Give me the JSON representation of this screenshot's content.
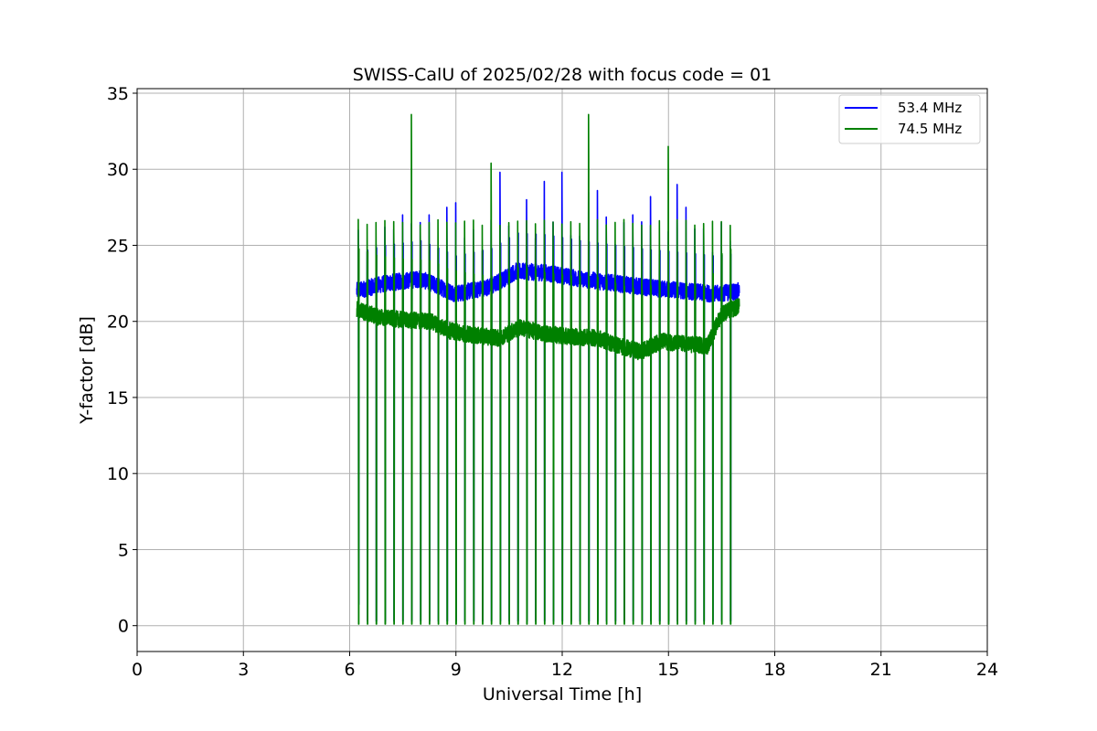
{
  "chart_data": {
    "type": "line",
    "title": "SWISS-CalU of 2025/02/28 with focus code = 01",
    "xlabel": "Universal Time [h]",
    "ylabel": "Y-factor [dB]",
    "xlim": [
      0,
      24
    ],
    "ylim": [
      -1.7,
      35.3
    ],
    "xticks": [
      "0",
      "3",
      "6",
      "9",
      "12",
      "15",
      "18",
      "21",
      "24"
    ],
    "yticks": [
      "0",
      "5",
      "10",
      "15",
      "20",
      "25",
      "30",
      "35"
    ],
    "grid": true,
    "legend_position": "top-right",
    "data_start_h": 6.2,
    "data_end_h": 17.0,
    "calibration_cycle_h": 0.25,
    "series": [
      {
        "name": "53.4 MHz",
        "color": "#0000ff",
        "baseline_points": [
          [
            6.2,
            22.0
          ],
          [
            7.0,
            22.5
          ],
          [
            8.0,
            22.8
          ],
          [
            9.0,
            21.8
          ],
          [
            10.0,
            22.3
          ],
          [
            10.7,
            23.3
          ],
          [
            11.5,
            23.2
          ],
          [
            12.5,
            22.8
          ],
          [
            13.5,
            22.5
          ],
          [
            14.5,
            22.2
          ],
          [
            15.5,
            22.0
          ],
          [
            16.3,
            21.8
          ],
          [
            17.0,
            22.0
          ]
        ],
        "peaks": [
          [
            6.35,
            26.0
          ],
          [
            6.9,
            26.2
          ],
          [
            7.6,
            27.0
          ],
          [
            8.1,
            26.5
          ],
          [
            8.85,
            27.5
          ],
          [
            9.1,
            27.8
          ],
          [
            10.15,
            29.8
          ],
          [
            10.95,
            28.0
          ],
          [
            11.45,
            29.2
          ],
          [
            12.05,
            29.8
          ],
          [
            12.8,
            28.5
          ],
          [
            13.0,
            28.6
          ],
          [
            13.95,
            27.0
          ],
          [
            14.55,
            28.2
          ],
          [
            15.15,
            29.0
          ],
          [
            15.55,
            27.5
          ],
          [
            16.45,
            26.5
          ]
        ],
        "dip_min": [
          1.4,
          0.3
        ]
      },
      {
        "name": "74.5 MHz",
        "color": "#008000",
        "baseline_points": [
          [
            6.2,
            20.8
          ],
          [
            6.8,
            20.3
          ],
          [
            7.5,
            20.1
          ],
          [
            8.3,
            20.0
          ],
          [
            8.8,
            19.4
          ],
          [
            9.5,
            19.1
          ],
          [
            10.2,
            18.9
          ],
          [
            10.8,
            19.6
          ],
          [
            11.5,
            19.2
          ],
          [
            12.2,
            19.0
          ],
          [
            13.0,
            18.9
          ],
          [
            13.6,
            18.4
          ],
          [
            14.2,
            18.0
          ],
          [
            14.8,
            18.7
          ],
          [
            15.5,
            18.5
          ],
          [
            16.1,
            18.4
          ],
          [
            16.5,
            20.5
          ],
          [
            17.0,
            21.0
          ]
        ],
        "peaks": [
          [
            6.25,
            26.7
          ],
          [
            7.85,
            33.6
          ],
          [
            10.1,
            30.4
          ],
          [
            12.85,
            33.6
          ],
          [
            15.05,
            31.7
          ],
          [
            15.1,
            31.5
          ]
        ],
        "spike_level": 26.7,
        "dip_min": 0.1
      }
    ]
  }
}
